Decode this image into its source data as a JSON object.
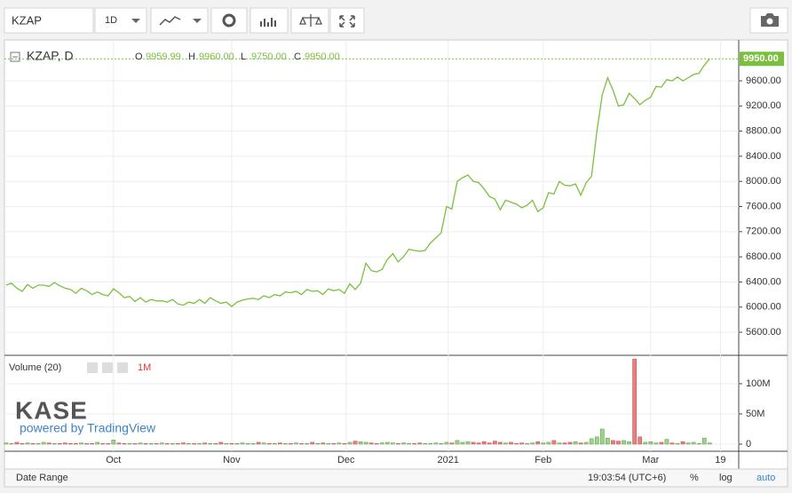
{
  "toolbar": {
    "symbol": "KZAP",
    "interval": "1D"
  },
  "chart_data": [
    {
      "type": "line",
      "legend_title": "KZAP, D",
      "color": "#7cbf3f",
      "ohlc": [
        {
          "key": "O",
          "label": "9959.99"
        },
        {
          "key": "H",
          "label": "9960.00"
        },
        {
          "key": "L",
          "label": "9750.00"
        },
        {
          "key": "C",
          "label": "9950.00"
        }
      ],
      "last_label": "9950.00",
      "values": [
        6350,
        6380,
        6300,
        6250,
        6360,
        6300,
        6350,
        6350,
        6330,
        6390,
        6340,
        6300,
        6280,
        6220,
        6300,
        6260,
        6200,
        6240,
        6200,
        6180,
        6290,
        6230,
        6150,
        6170,
        6090,
        6150,
        6080,
        6120,
        6100,
        6100,
        6080,
        6120,
        6050,
        6030,
        6080,
        6060,
        6120,
        6060,
        6150,
        6100,
        6060,
        6080,
        6010,
        6080,
        6110,
        6130,
        6140,
        6120,
        6180,
        6150,
        6200,
        6180,
        6240,
        6230,
        6250,
        6200,
        6280,
        6250,
        6260,
        6200,
        6290,
        6260,
        6280,
        6220,
        6370,
        6280,
        6380,
        6700,
        6580,
        6560,
        6600,
        6760,
        6850,
        6720,
        6800,
        6920,
        6900,
        6890,
        6900,
        7020,
        7100,
        7180,
        7600,
        7560,
        8000,
        8060,
        8100,
        8000,
        7980,
        7880,
        7760,
        7720,
        7550,
        7700,
        7670,
        7640,
        7580,
        7620,
        7700,
        7520,
        7580,
        7820,
        7800,
        8000,
        7940,
        7930,
        7960,
        7780,
        7980,
        8080,
        8800,
        9380,
        9650,
        9450,
        9200,
        9220,
        9400,
        9320,
        9220,
        9290,
        9340,
        9510,
        9500,
        9620,
        9600,
        9660,
        9600,
        9650,
        9700,
        9720,
        9850,
        9950
      ],
      "xlim": [
        -0.3,
        136.4
      ],
      "xticks": [
        {
          "value": 20,
          "label": "Oct"
        },
        {
          "value": 42,
          "label": "Nov"
        },
        {
          "value": 63.3,
          "label": "Dec"
        },
        {
          "value": 82.3,
          "label": "2021"
        },
        {
          "value": 100,
          "label": "Feb"
        },
        {
          "value": 120,
          "label": "Mar"
        },
        {
          "value": 133,
          "label": "19"
        }
      ],
      "ylim": [
        5233,
        10250
      ],
      "yticks": [
        {
          "value": 5600,
          "label": "5600.00"
        },
        {
          "value": 6000,
          "label": "6000.00"
        },
        {
          "value": 6400,
          "label": "6400.00"
        },
        {
          "value": 6800,
          "label": "6800.00"
        },
        {
          "value": 7200,
          "label": "7200.00"
        },
        {
          "value": 7600,
          "label": "7600.00"
        },
        {
          "value": 8000,
          "label": "8000.00"
        },
        {
          "value": 8400,
          "label": "8400.00"
        },
        {
          "value": 8800,
          "label": "8800.00"
        },
        {
          "value": 9200,
          "label": "9200.00"
        },
        {
          "value": 9600,
          "label": "9600.00"
        }
      ],
      "grid": true
    },
    {
      "type": "bar",
      "legend_title": "Volume (20)",
      "badge": "1M",
      "up_color": "#9ed28a",
      "down_color": "#ea7f7f",
      "values": [
        2,
        1,
        3,
        1,
        2,
        1,
        1,
        3,
        2,
        1,
        1,
        2,
        1,
        1,
        2,
        1,
        1,
        3,
        1,
        1,
        7,
        2,
        1,
        1,
        1,
        2,
        1,
        1,
        1,
        2,
        1,
        1,
        1,
        2,
        1,
        1,
        1,
        2,
        1,
        1,
        3,
        1,
        1,
        1,
        2,
        1,
        1,
        3,
        2,
        1,
        1,
        2,
        1,
        1,
        2,
        1,
        1,
        3,
        1,
        2,
        1,
        1,
        2,
        1,
        3,
        5,
        4,
        3,
        2,
        1,
        2,
        3,
        2,
        1,
        2,
        1,
        1,
        2,
        1,
        1,
        2,
        1,
        3,
        2,
        6,
        3,
        4,
        3,
        2,
        4,
        2,
        5,
        3,
        2,
        3,
        1,
        2,
        1,
        2,
        4,
        2,
        3,
        6,
        2,
        2,
        3,
        4,
        2,
        3,
        9,
        12,
        25,
        10,
        6,
        5,
        6,
        4,
        141,
        12,
        3,
        4,
        2,
        3,
        8,
        2,
        1,
        4,
        2,
        3,
        1,
        10,
        2
      ],
      "ylim": [
        -11.8,
        147
      ],
      "yticks": [
        {
          "value": 0,
          "label": "0"
        },
        {
          "value": 50,
          "label": "50M"
        },
        {
          "value": 100,
          "label": "100M"
        }
      ],
      "grid": true
    }
  ],
  "branding": {
    "logo": "KASE",
    "powered": "powered by TradingView"
  },
  "footer": {
    "date_range": "Date Range",
    "time": "19:03:54 (UTC+6)",
    "percent": "%",
    "log": "log",
    "auto": "auto"
  }
}
